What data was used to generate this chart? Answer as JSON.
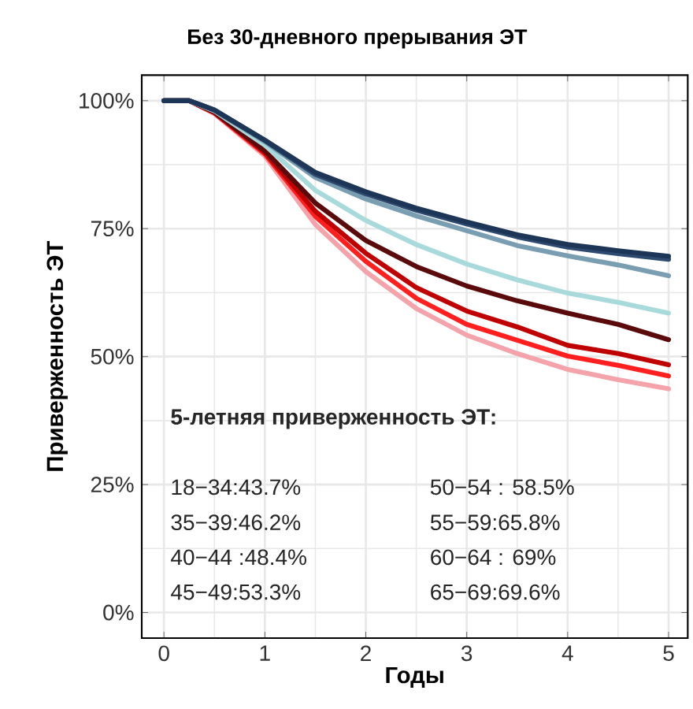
{
  "chart_data": {
    "type": "line",
    "title": "Без 30-дневного прерывания ЭТ",
    "xlabel": "Годы",
    "ylabel": "Приверженность ЭТ",
    "x": [
      0,
      0.25,
      0.5,
      1,
      1.5,
      2,
      2.5,
      3,
      3.5,
      4,
      4.5,
      5
    ],
    "series": [
      {
        "color": "#f4a3ab",
        "values": [
          100,
          100,
          97.5,
          89.2,
          75.8,
          66.6,
          59.4,
          54.2,
          50.6,
          47.5,
          45.5,
          43.7
        ]
      },
      {
        "color": "#ff1f1f",
        "values": [
          100,
          100,
          97.6,
          89.6,
          77.4,
          68.6,
          61.4,
          56.3,
          53.2,
          50.1,
          48.3,
          46.2
        ]
      },
      {
        "color": "#c00000",
        "values": [
          100,
          100,
          97.7,
          89.9,
          78.4,
          70.2,
          63.5,
          58.9,
          55.8,
          52.2,
          50.6,
          48.4
        ]
      },
      {
        "color": "#5a0a0a",
        "values": [
          100,
          100,
          97.8,
          90.2,
          80,
          72.7,
          67.6,
          63.8,
          60.9,
          58.5,
          56.3,
          53.3
        ]
      },
      {
        "color": "#a8dadc",
        "values": [
          100,
          100,
          98,
          91.3,
          82.5,
          76.6,
          71.9,
          68.1,
          65,
          62.4,
          60.6,
          58.5
        ]
      },
      {
        "color": "#7a9eb1",
        "values": [
          100,
          100,
          98.1,
          92,
          85,
          80.8,
          77.5,
          74.6,
          71.7,
          69.7,
          67.9,
          65.8
        ]
      },
      {
        "color": "#2e4a6e",
        "values": [
          100,
          100,
          98.2,
          92.2,
          85.6,
          81.8,
          78.6,
          75.9,
          73.4,
          71.4,
          70.1,
          69
        ]
      },
      {
        "color": "#1d3557",
        "values": [
          100,
          100,
          98.2,
          92.3,
          86,
          82.2,
          79,
          76.3,
          73.8,
          71.9,
          70.7,
          69.6
        ]
      }
    ],
    "xlim": [
      -0.22,
      5.19
    ],
    "ylim": [
      -5,
      105
    ],
    "xticks": [
      0,
      1,
      2,
      3,
      4,
      5
    ],
    "yticks": [
      {
        "value": 0,
        "label": "0%"
      },
      {
        "value": 25,
        "label": "25%"
      },
      {
        "value": 50,
        "label": "50%"
      },
      {
        "value": 75,
        "label": "75%"
      },
      {
        "value": 100,
        "label": "100%"
      }
    ],
    "grid": true,
    "marker": "none",
    "line_style": "solid",
    "annotations": [
      "**5-летняя приверженность ЭТ:**",
      "18−34:43.7%",
      "35−39:46.2%",
      "40−44 :48.4%",
      "45−49:53.3%",
      "50−54 : 58.5%",
      "55−59:65.8%",
      "60−64 : 69%",
      "65−69:69.6%"
    ]
  }
}
